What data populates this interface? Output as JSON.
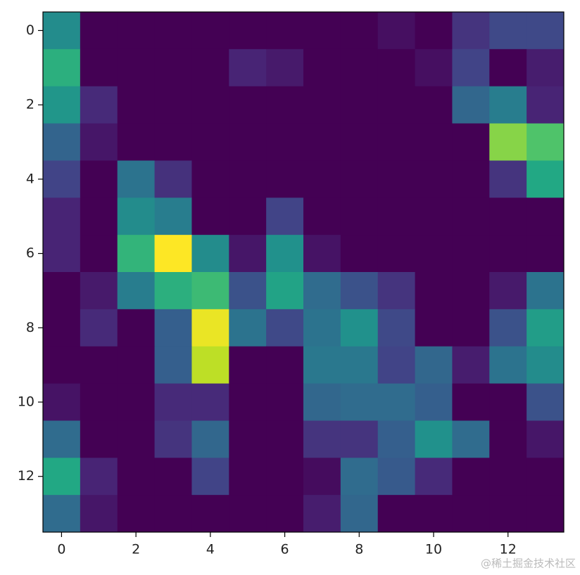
{
  "chart_data": {
    "type": "heatmap",
    "colormap": "viridis",
    "xlim": [
      -0.5,
      13.5
    ],
    "ylim": [
      13.5,
      -0.5
    ],
    "xticks": [
      0,
      2,
      4,
      6,
      8,
      10,
      12
    ],
    "yticks": [
      0,
      2,
      4,
      6,
      8,
      10,
      12
    ],
    "z": [
      [
        0.48,
        0,
        0,
        0,
        0,
        0,
        0,
        0,
        0,
        0.04,
        0,
        0.15,
        0.22,
        0.22
      ],
      [
        0.63,
        0,
        0,
        0,
        0,
        0.1,
        0.07,
        0,
        0,
        0,
        0.04,
        0.2,
        0,
        0.08
      ],
      [
        0.52,
        0.12,
        0,
        0,
        0,
        0,
        0,
        0,
        0,
        0,
        0,
        0.33,
        0.42,
        0.1
      ],
      [
        0.32,
        0.06,
        0,
        0,
        0,
        0,
        0,
        0,
        0,
        0,
        0,
        0,
        0.82,
        0.72
      ],
      [
        0.2,
        0,
        0.38,
        0.14,
        0,
        0,
        0,
        0,
        0,
        0,
        0,
        0,
        0.15,
        0.6
      ],
      [
        0.1,
        0,
        0.48,
        0.42,
        0,
        0,
        0.2,
        0,
        0,
        0,
        0,
        0,
        0,
        0
      ],
      [
        0.1,
        0,
        0.65,
        1.0,
        0.48,
        0.06,
        0.5,
        0.05,
        0,
        0,
        0,
        0,
        0,
        0
      ],
      [
        0,
        0.07,
        0.42,
        0.63,
        0.68,
        0.25,
        0.58,
        0.35,
        0.25,
        0.15,
        0,
        0,
        0.07,
        0.38
      ],
      [
        0,
        0.12,
        0,
        0.3,
        0.97,
        0.38,
        0.22,
        0.38,
        0.5,
        0.22,
        0,
        0,
        0.25,
        0.55
      ],
      [
        0,
        0,
        0,
        0.3,
        0.9,
        0,
        0,
        0.4,
        0.4,
        0.2,
        0.33,
        0.08,
        0.38,
        0.48
      ],
      [
        0.05,
        0,
        0,
        0.12,
        0.12,
        0,
        0,
        0.33,
        0.35,
        0.35,
        0.3,
        0,
        0,
        0.25
      ],
      [
        0.35,
        0,
        0,
        0.15,
        0.33,
        0,
        0,
        0.15,
        0.15,
        0.3,
        0.5,
        0.35,
        0,
        0.06
      ],
      [
        0.6,
        0.1,
        0,
        0,
        0.2,
        0,
        0,
        0.03,
        0.35,
        0.28,
        0.12,
        0,
        0,
        0
      ],
      [
        0.35,
        0.06,
        0,
        0,
        0,
        0,
        0,
        0.08,
        0.33,
        0,
        0,
        0,
        0,
        0
      ]
    ]
  },
  "watermark": "@稀土掘金技术社区"
}
